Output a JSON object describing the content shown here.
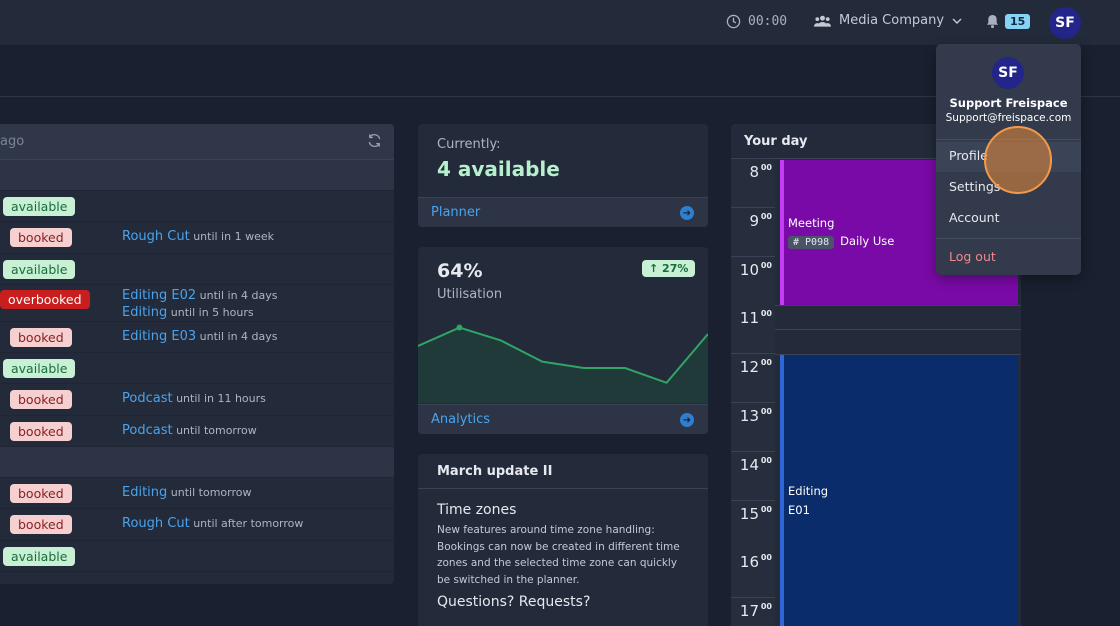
{
  "topbar": {
    "timer": "00:00",
    "company": "Media Company",
    "notifications": "15",
    "avatar": "SF"
  },
  "list": {
    "search_placeholder": "ago",
    "rows": [
      {
        "status": "available"
      },
      {
        "status": "booked",
        "project": "Rough Cut",
        "until": "until in 1 week"
      },
      {
        "status": "available"
      },
      {
        "status": "overbooked",
        "project": "Editing E02",
        "until": "until in 4 days",
        "project2": "Editing",
        "until2": "until in 5 hours"
      },
      {
        "status": "booked",
        "project": "Editing E03",
        "until": "until in 4 days"
      },
      {
        "status": "available"
      },
      {
        "status": "booked",
        "project": "Podcast",
        "until": "until in 11 hours"
      },
      {
        "status": "booked",
        "project": "Podcast",
        "until": "until tomorrow"
      },
      {
        "status": "booked",
        "project": "Editing",
        "until": "until tomorrow"
      },
      {
        "status": "booked",
        "project": "Rough Cut",
        "until": "until after tomorrow"
      },
      {
        "status": "available"
      }
    ]
  },
  "availability": {
    "label": "Currently:",
    "value": "4 available",
    "link": "Planner"
  },
  "utilisation": {
    "value": "64%",
    "label": "Utilisation",
    "trend": "↑ 27%",
    "link": "Analytics",
    "series": [
      0.62,
      0.82,
      0.68,
      0.45,
      0.38,
      0.38,
      0.22,
      0.75
    ]
  },
  "news": {
    "title": "March update II",
    "heading1": "Time zones",
    "text1": "New features around time zone handling: Bookings can now be created in different time zones and the selected time zone can quickly be switched in the planner.",
    "heading2": "Questions? Requests?"
  },
  "day": {
    "title": "Your day",
    "hours": [
      "8",
      "9",
      "10",
      "11",
      "12",
      "13",
      "14",
      "15",
      "16",
      "17"
    ],
    "minute_suffix": "00",
    "meeting_title": "Meeting",
    "meeting_tag": "# P098",
    "meeting_detail": "Daily Use",
    "editing_title": "Editing",
    "editing_detail": "E01"
  },
  "menu": {
    "avatar": "SF",
    "name": "Support Freispace",
    "email": "Support@freispace.com",
    "items": [
      "Profile",
      "Settings",
      "Account"
    ],
    "logout": "Log out"
  },
  "colors": {
    "accent": "#4aa3ee",
    "available_bg": "#c7f0d4",
    "booked_bg": "#f6d0d0",
    "overbooked_bg": "#c81e1e",
    "meeting": "#7a0aa7",
    "editing": "#0a2c6a"
  }
}
